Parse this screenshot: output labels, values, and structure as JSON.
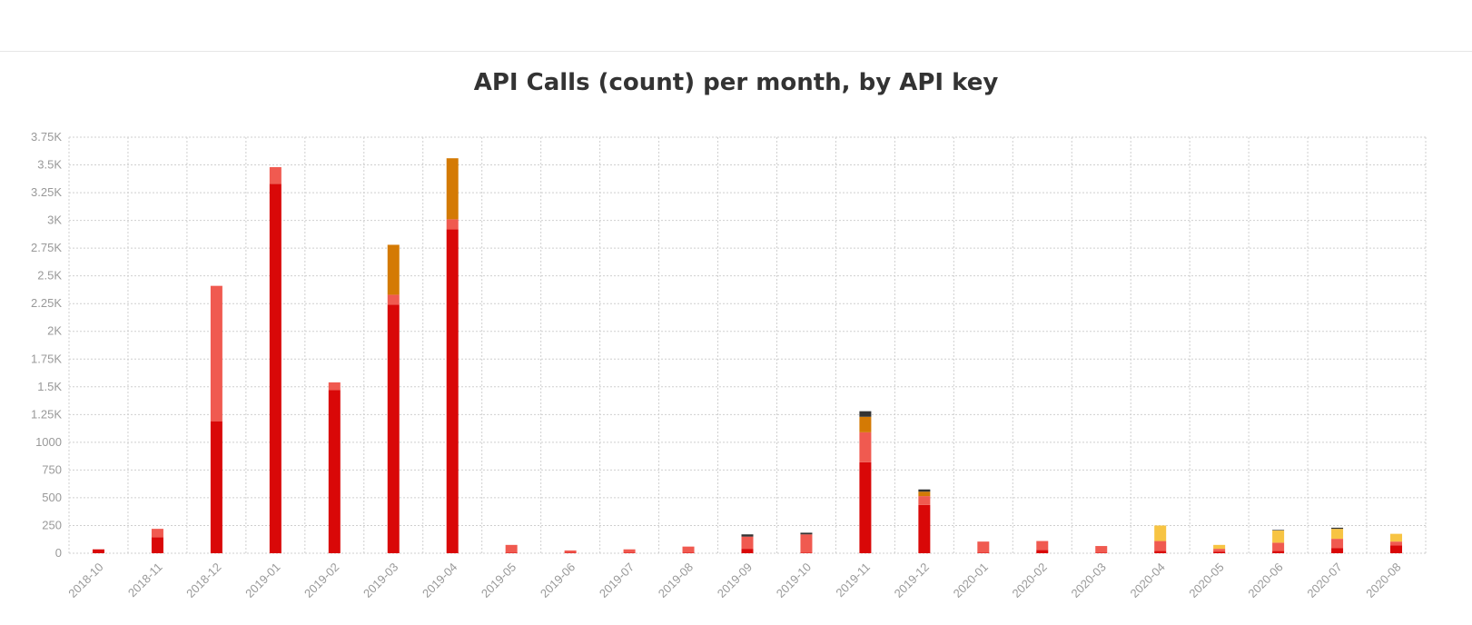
{
  "chart_data": {
    "type": "bar",
    "stacked": true,
    "title": "API Calls (count) per month, by API key",
    "xlabel": "",
    "ylabel": "",
    "ylim": [
      0,
      3750
    ],
    "yticks": [
      0,
      250,
      500,
      750,
      1000,
      1250,
      1500,
      1750,
      2000,
      2250,
      2500,
      2750,
      3000,
      3250,
      3500,
      3750
    ],
    "ytick_labels": [
      "0",
      "250",
      "500",
      "750",
      "1000",
      "1.25K",
      "1.5K",
      "1.75K",
      "2K",
      "2.25K",
      "2.5K",
      "2.75K",
      "3K",
      "3.25K",
      "3.5K",
      "3.75K"
    ],
    "grid": true,
    "legend": "none",
    "categories": [
      "2018-10",
      "2018-11",
      "2018-12",
      "2019-01",
      "2019-02",
      "2019-03",
      "2019-04",
      "2019-05",
      "2019-06",
      "2019-07",
      "2019-08",
      "2019-09",
      "2019-10",
      "2019-11",
      "2019-12",
      "2020-01",
      "2020-02",
      "2020-03",
      "2020-04",
      "2020-05",
      "2020-06",
      "2020-07",
      "2020-08"
    ],
    "series": [
      {
        "color": "#d90808",
        "values": [
          35,
          145,
          1190,
          3330,
          1470,
          2240,
          2920,
          5,
          5,
          5,
          5,
          40,
          5,
          820,
          435,
          5,
          30,
          5,
          20,
          15,
          20,
          45,
          70
        ]
      },
      {
        "color": "#f05a50",
        "values": [
          0,
          75,
          1220,
          150,
          70,
          90,
          90,
          70,
          20,
          30,
          55,
          110,
          165,
          270,
          80,
          100,
          80,
          60,
          90,
          25,
          75,
          85,
          35
        ]
      },
      {
        "color": "#d47a04",
        "values": [
          0,
          0,
          0,
          0,
          0,
          450,
          550,
          0,
          0,
          0,
          0,
          0,
          0,
          140,
          40,
          0,
          0,
          0,
          0,
          0,
          0,
          0,
          0
        ]
      },
      {
        "color": "#f7c443",
        "values": [
          0,
          0,
          0,
          0,
          0,
          0,
          0,
          0,
          0,
          0,
          0,
          0,
          0,
          0,
          0,
          0,
          0,
          0,
          140,
          35,
          110,
          90,
          70
        ]
      },
      {
        "color": "#333333",
        "values": [
          0,
          0,
          0,
          0,
          0,
          0,
          0,
          0,
          0,
          0,
          0,
          20,
          15,
          50,
          20,
          0,
          0,
          0,
          0,
          0,
          5,
          10,
          0
        ]
      }
    ]
  }
}
